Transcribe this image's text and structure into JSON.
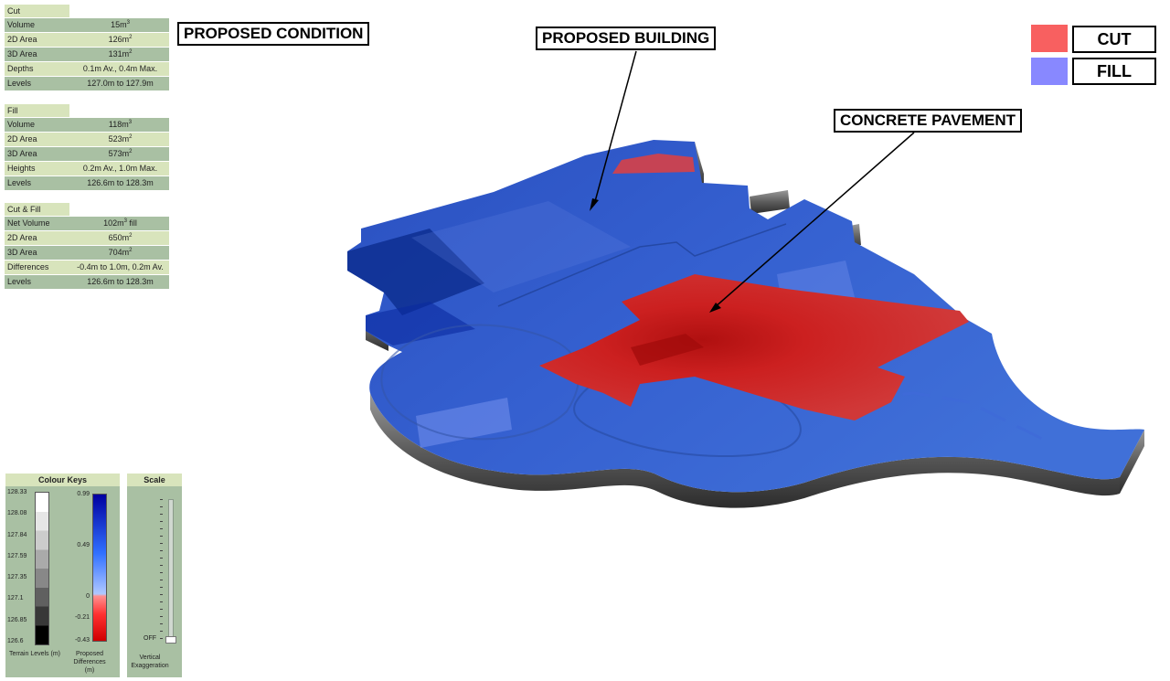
{
  "cut_table": {
    "title": "Cut",
    "rows": [
      {
        "key": "Volume",
        "value": "15m",
        "sup": "3"
      },
      {
        "key": "2D Area",
        "value": "126m",
        "sup": "2"
      },
      {
        "key": "3D Area",
        "value": "131m",
        "sup": "2"
      },
      {
        "key": "Depths",
        "value": "0.1m Av., 0.4m Max.",
        "sup": ""
      },
      {
        "key": "Levels",
        "value": "127.0m to 127.9m",
        "sup": ""
      }
    ]
  },
  "fill_table": {
    "title": "Fill",
    "rows": [
      {
        "key": "Volume",
        "value": "118m",
        "sup": "3"
      },
      {
        "key": "2D Area",
        "value": "523m",
        "sup": "2"
      },
      {
        "key": "3D Area",
        "value": "573m",
        "sup": "2"
      },
      {
        "key": "Heights",
        "value": "0.2m Av., 1.0m Max.",
        "sup": ""
      },
      {
        "key": "Levels",
        "value": "126.6m to 128.3m",
        "sup": ""
      }
    ]
  },
  "cutfill_table": {
    "title": "Cut & Fill",
    "rows": [
      {
        "key": "Net Volume",
        "value": "102m",
        "sup": "3",
        "suffix": " fill"
      },
      {
        "key": "2D Area",
        "value": "650m",
        "sup": "2"
      },
      {
        "key": "3D Area",
        "value": "704m",
        "sup": "2"
      },
      {
        "key": "Differences",
        "value": "-0.4m to 1.0m, 0.2m Av.",
        "sup": ""
      },
      {
        "key": "Levels",
        "value": "126.6m to 128.3m",
        "sup": ""
      }
    ]
  },
  "callouts": {
    "proposed_condition": "PROPOSED CONDITION",
    "proposed_building": "PROPOSED BUILDING",
    "concrete_pavement": "CONCRETE PAVEMENT"
  },
  "legend": {
    "cut_label": "CUT",
    "fill_label": "FILL",
    "cut_color": "#f86060",
    "fill_color": "#8888ff"
  },
  "colour_keys": {
    "title": "Colour Keys",
    "terrain_ticks": [
      "128.33",
      "128.08",
      "127.84",
      "127.59",
      "127.35",
      "127.1",
      "126.85",
      "126.6"
    ],
    "terrain_label": "Terrain Levels (m)",
    "difference_ticks": [
      "0.99",
      "0.49",
      "0",
      "-0.21",
      "-0.43"
    ],
    "difference_label": "Proposed Differences (m)"
  },
  "scale_panel": {
    "title": "Scale",
    "off_label": "OFF",
    "caption": "Vertical Exaggeration"
  }
}
